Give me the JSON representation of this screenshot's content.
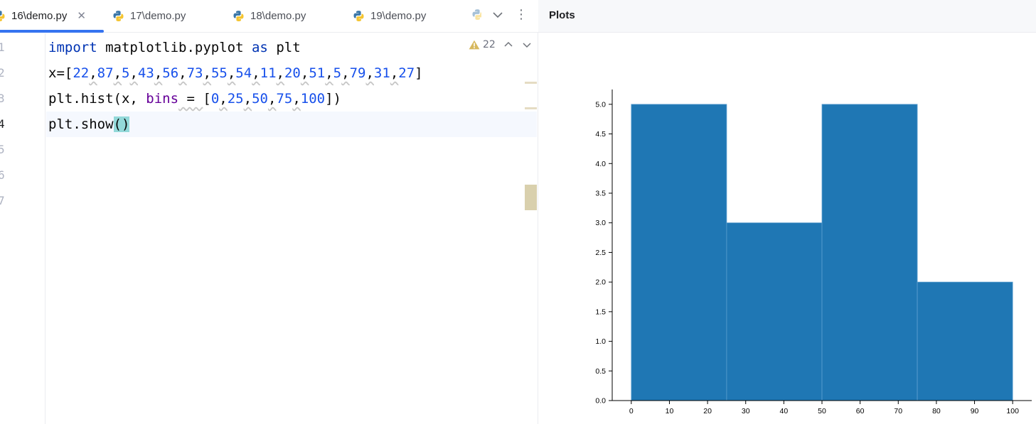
{
  "tabs": [
    {
      "label": "16\\demo.py",
      "active": true,
      "closable": true
    },
    {
      "label": "17\\demo.py",
      "active": false
    },
    {
      "label": "18\\demo.py",
      "active": false
    },
    {
      "label": "19\\demo.py",
      "active": false
    }
  ],
  "tab_overflow_icon": "python-file-icon",
  "editor": {
    "line_numbers": [
      "1",
      "2",
      "3",
      "4",
      "5",
      "6",
      "7"
    ],
    "current_line": 4,
    "inspection": {
      "warning_count": "22",
      "icon": "warning-triangle-icon"
    },
    "code_lines": [
      "import matplotlib.pyplot as plt",
      "x=[22,87,5,43,56,73,55,54,11,20,51,5,79,31,27]",
      "plt.hist(x, bins = [0,25,50,75,100])",
      "plt.show()",
      "",
      "",
      ""
    ]
  },
  "plots_panel": {
    "title": "Plots"
  },
  "colors": {
    "accent": "#3574f0",
    "bar": "#1f77b4",
    "keyword": "#0033b3",
    "number": "#1750eb",
    "kwarg": "#660099",
    "brace_highlight": "#93d9d9"
  },
  "chart_data": {
    "type": "bar",
    "histogram": true,
    "bin_edges": [
      0,
      25,
      50,
      75,
      100
    ],
    "values": [
      5,
      3,
      5,
      2
    ],
    "xlim": [
      -5,
      105
    ],
    "ylim": [
      0,
      5.25
    ],
    "xticks": [
      "0",
      "10",
      "20",
      "30",
      "40",
      "50",
      "60",
      "70",
      "80",
      "90",
      "100"
    ],
    "yticks": [
      "0.0",
      "0.5",
      "1.0",
      "1.5",
      "2.0",
      "2.5",
      "3.0",
      "3.5",
      "4.0",
      "4.5",
      "5.0"
    ],
    "title": "",
    "xlabel": "",
    "ylabel": "",
    "grid": false
  }
}
